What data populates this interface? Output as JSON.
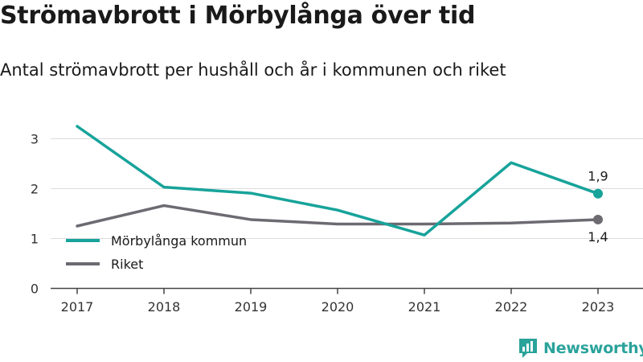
{
  "header": {
    "title": "Strömavbrott i Mörbylånga över tid",
    "subtitle": "Antal strömavbrott per hushåll och år i kommunen och riket"
  },
  "brand": {
    "name": "Newsworthy",
    "logo_icon": "bar-chart-logo-icon"
  },
  "chart_data": {
    "type": "line",
    "title": "Strömavbrott i Mörbylånga över tid",
    "subtitle": "Antal strömavbrott per hushåll och år i kommunen och riket",
    "xlabel": "",
    "ylabel": "",
    "categories": [
      "2017",
      "2018",
      "2019",
      "2020",
      "2021",
      "2022",
      "2023"
    ],
    "yticks": [
      "0",
      "1",
      "2",
      "3"
    ],
    "ylim": [
      0,
      3.4
    ],
    "grid": true,
    "legend_position": "bottom-left",
    "series": [
      {
        "name": "Mörbylånga kommun",
        "color": "#17a39a",
        "values": [
          3.25,
          2.03,
          1.91,
          1.57,
          1.07,
          2.52,
          1.9
        ],
        "end_label": "1,9"
      },
      {
        "name": "Riket",
        "color": "#6d6a72",
        "values": [
          1.25,
          1.66,
          1.38,
          1.29,
          1.29,
          1.31,
          1.38
        ],
        "end_label": "1,4"
      }
    ]
  }
}
